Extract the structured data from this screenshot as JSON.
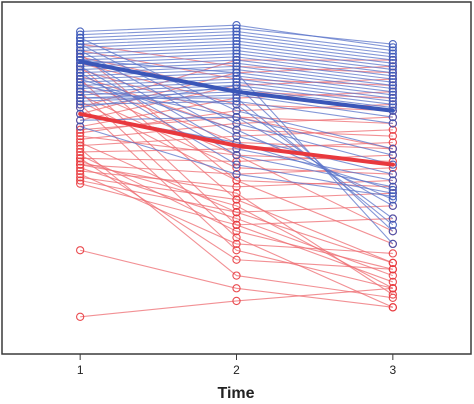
{
  "chart_data": {
    "type": "line",
    "title": "",
    "xlabel": "Time",
    "ylabel": "",
    "categories": [
      "1",
      "2",
      "3"
    ],
    "x": [
      1,
      2,
      3
    ],
    "xlim": [
      0.5,
      3.5
    ],
    "ylim": [
      0,
      100
    ],
    "grid": false,
    "colors": {
      "blue": "#3a56b8",
      "red": "#e8383d",
      "blue_thin": "#5b74c9",
      "red_thin": "#ee6b70"
    },
    "groups": [
      {
        "color": "blue",
        "mean": [
          87.5,
          78,
          72
        ],
        "subjects": [
          [
            97,
            99,
            92
          ],
          [
            96,
            98,
            93
          ],
          [
            95,
            97,
            91
          ],
          [
            94,
            96,
            90
          ],
          [
            93,
            95,
            89
          ],
          [
            92,
            94,
            88
          ],
          [
            91,
            93,
            87
          ],
          [
            90,
            92,
            86
          ],
          [
            89,
            91,
            85
          ],
          [
            88,
            90,
            84
          ],
          [
            87,
            89,
            83
          ],
          [
            86,
            88,
            82
          ],
          [
            85,
            87,
            81
          ],
          [
            84,
            86,
            80
          ],
          [
            83,
            85,
            79
          ],
          [
            82,
            84,
            78
          ],
          [
            81,
            83,
            77
          ],
          [
            80,
            82,
            76
          ],
          [
            79,
            81,
            75
          ],
          [
            78,
            80,
            74
          ],
          [
            77,
            79,
            73
          ],
          [
            76,
            78,
            72
          ],
          [
            75,
            77,
            70
          ],
          [
            74,
            75,
            68
          ],
          [
            95,
            72,
            60
          ],
          [
            93,
            68,
            55
          ],
          [
            91,
            64,
            52
          ],
          [
            89,
            60,
            50
          ],
          [
            86,
            58,
            48
          ],
          [
            84,
            55,
            46
          ],
          [
            82,
            66,
            44
          ],
          [
            80,
            70,
            42
          ],
          [
            78,
            74,
            38
          ],
          [
            76,
            76,
            36
          ],
          [
            73,
            80,
            34
          ],
          [
            71,
            62,
            47
          ],
          [
            69,
            70,
            58
          ],
          [
            67,
            52,
            45
          ],
          [
            88,
            84,
            30
          ]
        ]
      },
      {
        "color": "red",
        "mean": [
          71,
          61,
          55
        ],
        "subjects": [
          [
            93,
            86,
            84
          ],
          [
            91,
            82,
            80
          ],
          [
            89,
            78,
            76
          ],
          [
            87,
            74,
            72
          ],
          [
            85,
            70,
            68
          ],
          [
            83,
            66,
            64
          ],
          [
            81,
            62,
            60
          ],
          [
            79,
            58,
            56
          ],
          [
            77,
            54,
            52
          ],
          [
            75,
            50,
            48
          ],
          [
            73,
            88,
            88
          ],
          [
            71,
            84,
            86
          ],
          [
            69,
            80,
            82
          ],
          [
            67,
            76,
            78
          ],
          [
            65,
            72,
            74
          ],
          [
            63,
            68,
            70
          ],
          [
            61,
            64,
            66
          ],
          [
            59,
            60,
            62
          ],
          [
            57,
            56,
            58
          ],
          [
            55,
            52,
            54
          ],
          [
            53,
            48,
            50
          ],
          [
            51,
            44,
            46
          ],
          [
            50,
            40,
            42
          ],
          [
            49,
            36,
            38
          ],
          [
            52,
            30,
            27
          ],
          [
            54,
            38,
            20
          ],
          [
            55,
            46,
            14
          ],
          [
            57,
            25,
            22
          ],
          [
            60,
            20,
            13
          ],
          [
            90,
            50,
            30
          ],
          [
            86,
            44,
            24
          ],
          [
            82,
            36,
            18
          ],
          [
            78,
            32,
            10
          ],
          [
            74,
            28,
            16
          ],
          [
            28,
            16,
            10
          ],
          [
            7,
            12,
            16
          ],
          [
            62,
            40,
            24
          ],
          [
            64,
            58,
            34
          ],
          [
            56,
            42,
            16
          ],
          [
            66,
            70,
            60
          ],
          [
            58,
            34,
            22
          ]
        ]
      }
    ]
  }
}
